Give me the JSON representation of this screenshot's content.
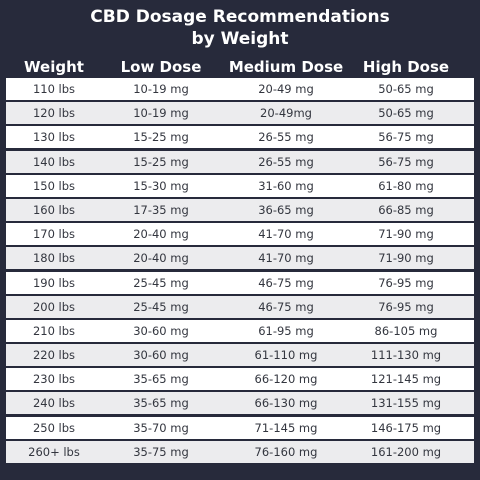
{
  "title_line1": "CBD Dosage Recommendations",
  "title_line2": "by Weight",
  "headers": [
    "Weight",
    "Low Dose",
    "Medium Dose",
    "High Dose"
  ],
  "rows": [
    [
      "110 lbs",
      "10-19 mg",
      "20-49 mg",
      "50-65 mg"
    ],
    [
      "120 lbs",
      "10-19 mg",
      "20-49mg",
      "50-65 mg"
    ],
    [
      "130 lbs",
      "15-25 mg",
      "26-55 mg",
      "56-75 mg"
    ],
    [
      "140 lbs",
      "15-25 mg",
      "26-55 mg",
      "56-75 mg"
    ],
    [
      "150 lbs",
      "15-30 mg",
      "31-60 mg",
      "61-80 mg"
    ],
    [
      "160 lbs",
      "17-35 mg",
      "36-65 mg",
      "66-85 mg"
    ],
    [
      "170 lbs",
      "20-40 mg",
      "41-70 mg",
      "71-90 mg"
    ],
    [
      "180 lbs",
      "20-40 mg",
      "41-70 mg",
      "71-90 mg"
    ],
    [
      "190 lbs",
      "25-45 mg",
      "46-75 mg",
      "76-95 mg"
    ],
    [
      "200 lbs",
      "25-45 mg",
      "46-75 mg",
      "76-95 mg"
    ],
    [
      "210 lbs",
      "30-60 mg",
      "61-95 mg",
      "86-105 mg"
    ],
    [
      "220 lbs",
      "30-60 mg",
      "61-110 mg",
      "111-130 mg"
    ],
    [
      "230 lbs",
      "35-65 mg",
      "66-120 mg",
      "121-145 mg"
    ],
    [
      "240 lbs",
      "35-65 mg",
      "66-130 mg",
      "131-155 mg"
    ],
    [
      "250 lbs",
      "35-70 mg",
      "71-145 mg",
      "146-175 mg"
    ],
    [
      "260+ lbs",
      "35-75 mg",
      "76-160 mg",
      "161-200 mg"
    ]
  ]
}
